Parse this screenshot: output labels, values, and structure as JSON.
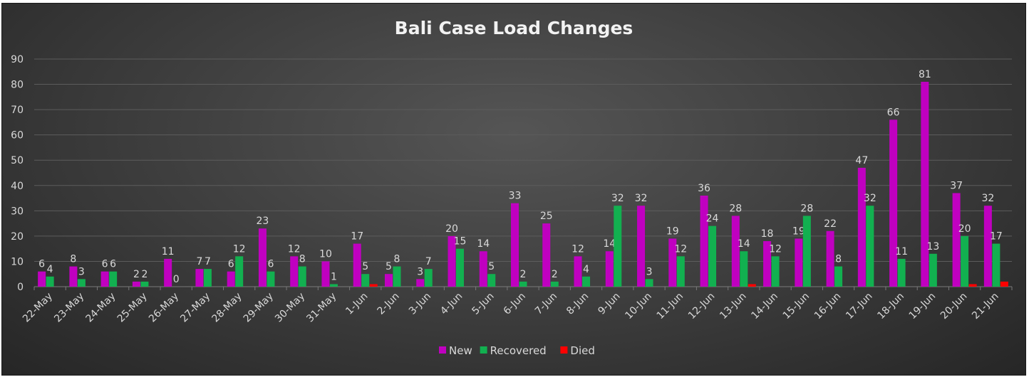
{
  "chart_data": {
    "type": "bar",
    "title": "Bali Case Load Changes",
    "xlabel": "",
    "ylabel": "",
    "ylim": [
      0,
      90
    ],
    "yticks": [
      0,
      10,
      20,
      30,
      40,
      50,
      60,
      70,
      80,
      90
    ],
    "grid": true,
    "legend_position": "bottom",
    "categories": [
      "22-May",
      "23-May",
      "24-May",
      "25-May",
      "26-May",
      "27-May",
      "28-May",
      "29-May",
      "30-May",
      "31-May",
      "1-Jun",
      "2-Jun",
      "3-Jun",
      "4-Jun",
      "5-Jun",
      "6-Jun",
      "7-Jun",
      "8-Jun",
      "9-Jun",
      "10-Jun",
      "11-Jun",
      "12-Jun",
      "13-Jun",
      "14-Jun",
      "15-Jun",
      "16-Jun",
      "17-Jun",
      "18-Jun",
      "19-Jun",
      "20-Jun",
      "21-Jun"
    ],
    "series": [
      {
        "name": "New",
        "color": "#c000c0",
        "values": [
          6,
          8,
          6,
          2,
          11,
          7,
          6,
          23,
          12,
          10,
          17,
          5,
          3,
          20,
          14,
          33,
          25,
          12,
          14,
          32,
          19,
          36,
          28,
          18,
          19,
          22,
          47,
          66,
          81,
          37,
          32
        ],
        "labels": [
          "6",
          "8",
          "6",
          "2",
          "11",
          "7",
          "6",
          "23",
          "12",
          "10",
          "17",
          "5",
          "3",
          "20",
          "14",
          "33",
          "25",
          "12",
          "14",
          "32",
          "19",
          "36",
          "28",
          "18",
          "19",
          "22",
          "47",
          "66",
          "81",
          "37",
          "32"
        ]
      },
      {
        "name": "Recovered",
        "color": "#12b050",
        "values": [
          4,
          3,
          6,
          2,
          0,
          7,
          12,
          6,
          8,
          1,
          5,
          8,
          7,
          15,
          5,
          2,
          2,
          4,
          32,
          3,
          12,
          24,
          14,
          12,
          28,
          8,
          32,
          11,
          13,
          20,
          17
        ],
        "labels": [
          "4",
          "3",
          "6",
          "2",
          "0",
          "7",
          "12",
          "6",
          "8",
          "1",
          "5",
          "8",
          "7",
          "15",
          "5",
          "2",
          "2",
          "4",
          "32",
          "3",
          "12",
          "24",
          "14",
          "12",
          "28",
          "8",
          "32",
          "11",
          "13",
          "20",
          "17"
        ]
      },
      {
        "name": "Died",
        "color": "#ff0000",
        "values": [
          0,
          0,
          0,
          0,
          0,
          0,
          0,
          0,
          0,
          0,
          1,
          0,
          0,
          0,
          0,
          0,
          0,
          0,
          0,
          0,
          0,
          0,
          1,
          0,
          0,
          0,
          0,
          0,
          0,
          1,
          2
        ],
        "labels": [
          "",
          "",
          "",
          "",
          "",
          "",
          "",
          "",
          "",
          "",
          "",
          "",
          "",
          "",
          "",
          "",
          "",
          "",
          "",
          "",
          "",
          "",
          "",
          "",
          "",
          "",
          "",
          "",
          "",
          "",
          ""
        ]
      }
    ]
  }
}
